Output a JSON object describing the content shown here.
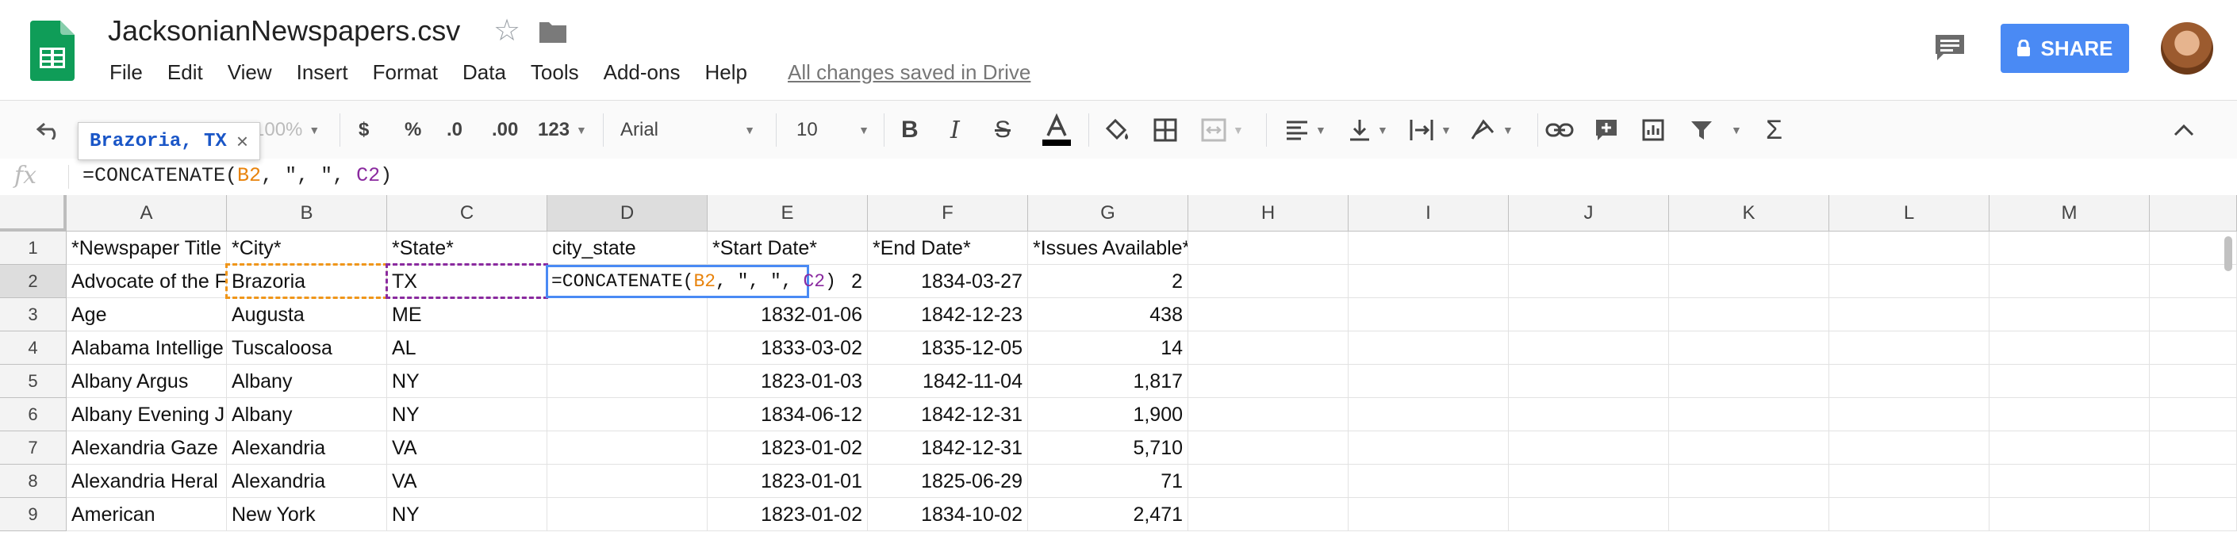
{
  "doc": {
    "title": "JacksonianNewspapers.csv",
    "saved_status": "All changes saved in Drive"
  },
  "menu": [
    "File",
    "Edit",
    "View",
    "Insert",
    "Format",
    "Data",
    "Tools",
    "Add-ons",
    "Help"
  ],
  "share": {
    "label": "SHARE"
  },
  "toolbar": {
    "zoom": "100%",
    "currency": "$",
    "percent": "%",
    "dec_less": ".0",
    "dec_more": ".00",
    "more_formats": "123",
    "font": "Arial",
    "font_size": "10"
  },
  "tooltip": {
    "text": "Brazoria, TX"
  },
  "formula_bar": {
    "fx": "fx",
    "prefix": "=CONCATENATE(",
    "ref_b": "B2",
    "middle": ", \", \", ",
    "ref_c": "C2",
    "suffix": ")"
  },
  "columns": [
    "A",
    "B",
    "C",
    "D",
    "E",
    "F",
    "G",
    "H",
    "I",
    "J",
    "K",
    "L",
    "M"
  ],
  "rows": [
    {
      "n": "1",
      "cells": [
        "*Newspaper Title",
        "*City*",
        "*State*",
        "city_state",
        "*Start Date*",
        "*End Date*",
        "*Issues Available*",
        "",
        "",
        "",
        "",
        "",
        ""
      ]
    },
    {
      "n": "2",
      "cells": [
        "Advocate of the F",
        "Brazoria",
        "TX",
        "",
        "2",
        "1834-03-27",
        "2",
        "",
        "",
        "",
        "",
        "",
        ""
      ]
    },
    {
      "n": "3",
      "cells": [
        "Age",
        "Augusta",
        "ME",
        "",
        "1832-01-06",
        "1842-12-23",
        "438",
        "",
        "",
        "",
        "",
        "",
        ""
      ]
    },
    {
      "n": "4",
      "cells": [
        "Alabama Intellige",
        "Tuscaloosa",
        "AL",
        "",
        "1833-03-02",
        "1835-12-05",
        "14",
        "",
        "",
        "",
        "",
        "",
        ""
      ]
    },
    {
      "n": "5",
      "cells": [
        "Albany Argus",
        "Albany",
        "NY",
        "",
        "1823-01-03",
        "1842-11-04",
        "1,817",
        "",
        "",
        "",
        "",
        "",
        ""
      ]
    },
    {
      "n": "6",
      "cells": [
        "Albany Evening J",
        "Albany",
        "NY",
        "",
        "1834-06-12",
        "1842-12-31",
        "1,900",
        "",
        "",
        "",
        "",
        "",
        ""
      ]
    },
    {
      "n": "7",
      "cells": [
        "Alexandria Gaze",
        "Alexandria",
        "VA",
        "",
        "1823-01-02",
        "1842-12-31",
        "5,710",
        "",
        "",
        "",
        "",
        "",
        ""
      ]
    },
    {
      "n": "8",
      "cells": [
        "Alexandria Heral",
        "Alexandria",
        "VA",
        "",
        "1823-01-01",
        "1825-06-29",
        "71",
        "",
        "",
        "",
        "",
        "",
        ""
      ]
    },
    {
      "n": "9",
      "cells": [
        "American",
        "New York",
        "NY",
        "",
        "1823-01-02",
        "1834-10-02",
        "2,471",
        "",
        "",
        "",
        "",
        "",
        ""
      ]
    }
  ],
  "cell_editor": {
    "prefix": "=CONCATENATE(",
    "ref_b": "B2",
    "middle": ", \", \", ",
    "ref_c": "C2",
    "suffix": ")"
  },
  "colors": {
    "share": "#4a8af4",
    "ref_b": "#e8830c",
    "ref_c": "#8a2a9f",
    "editor_border": "#4a8af4",
    "sheets_green": "#0f9d58"
  }
}
